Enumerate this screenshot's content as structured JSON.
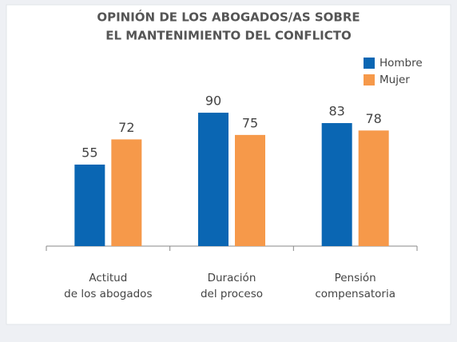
{
  "chart_data": {
    "type": "bar",
    "title": [
      "OPINIÓN DE LOS ABOGADOS/AS SOBRE",
      "EL MANTENIMIENTO DEL CONFLICTO"
    ],
    "categories": [
      [
        "Actitud",
        "de los abogados"
      ],
      [
        "Duración",
        "del proceso"
      ],
      [
        "Pensión",
        "compensatoria"
      ]
    ],
    "series": [
      {
        "name": "Hombre",
        "color": "#0a66b3",
        "values": [
          55,
          90,
          83
        ]
      },
      {
        "name": "Mujer",
        "color": "#f6994a",
        "values": [
          72,
          75,
          78
        ]
      }
    ],
    "ylim": [
      0,
      100
    ],
    "legend": "top-right"
  }
}
